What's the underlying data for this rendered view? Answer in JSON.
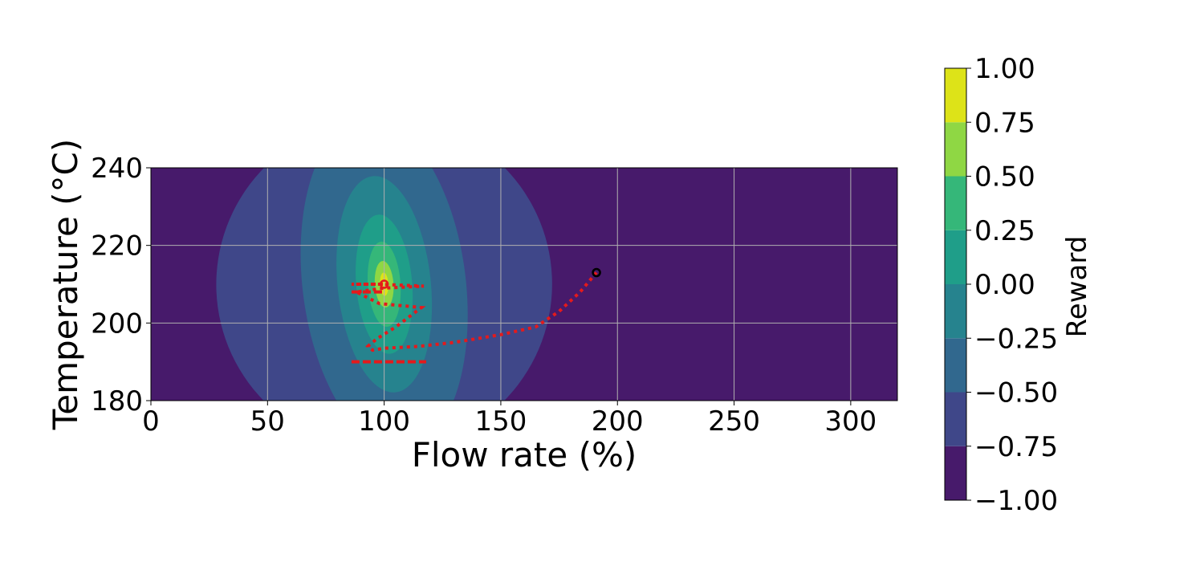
{
  "chart_data": {
    "type": "heatmap",
    "subtype": "filled-contour",
    "xlabel": "Flow rate (%)",
    "ylabel": "Temperature (°C)",
    "xlim": [
      0,
      320
    ],
    "ylim": [
      180,
      240
    ],
    "x_ticks": [
      "0",
      "50",
      "100",
      "150",
      "200",
      "250",
      "300"
    ],
    "y_ticks": [
      "180",
      "200",
      "220",
      "240"
    ],
    "grid": true,
    "colorbar": {
      "label": "Reward",
      "range": [
        -1.0,
        1.0
      ],
      "tick_labels": [
        "1.00",
        "0.75",
        "0.50",
        "0.25",
        "0.00",
        "−0.25",
        "−0.50",
        "−0.75",
        "−1.00"
      ],
      "levels": [
        -1.0,
        -0.75,
        -0.5,
        -0.25,
        0.0,
        0.25,
        0.5,
        0.75,
        1.0
      ],
      "colors": [
        "#471a6b",
        "#3f4789",
        "#31688e",
        "#26838e",
        "#1f9e89",
        "#35b779",
        "#8fd744",
        "#dde318"
      ]
    },
    "reward_peak": {
      "x": 100,
      "y": 210
    },
    "contour_bands": [
      {
        "level": -0.75,
        "color": "#3f4789",
        "rx": 72,
        "ry": 43,
        "tilt": -8
      },
      {
        "level": -0.5,
        "color": "#31688e",
        "rx": 35,
        "ry": 43,
        "tilt": -7
      },
      {
        "level": -0.25,
        "color": "#26838e",
        "rx": 20,
        "ry": 28,
        "tilt": -6
      },
      {
        "level": 0.0,
        "color": "#1f9e89",
        "rx": 12,
        "ry": 18,
        "tilt": -5
      },
      {
        "level": 0.25,
        "color": "#35b779",
        "rx": 7,
        "ry": 11,
        "tilt": -4
      },
      {
        "level": 0.5,
        "color": "#8fd744",
        "rx": 4,
        "ry": 6,
        "tilt": -4
      },
      {
        "level": 0.75,
        "color": "#dde318",
        "rx": 1.8,
        "ry": 3,
        "tilt": -3
      }
    ],
    "series": [
      {
        "style": "dotted",
        "color": "#e41a1c",
        "x": [
          191,
          184,
          175,
          165,
          150,
          130,
          115,
          100,
          95,
          93,
          97,
          105,
          116,
          98,
          88,
          100,
          117,
          98,
          86,
          100
        ],
        "y": [
          213,
          208,
          203,
          199,
          197,
          195,
          194,
          193.5,
          193,
          194,
          196,
          199,
          204,
          205,
          208,
          209,
          209.5,
          210,
          210,
          210
        ]
      },
      {
        "style": "dashed",
        "color": "#e41a1c",
        "x": [
          86,
          118
        ],
        "y": [
          190,
          190
        ]
      },
      {
        "style": "dashed",
        "color": "#e41a1c",
        "x": [
          86,
          100
        ],
        "y": [
          208,
          208
        ]
      }
    ],
    "markers": [
      {
        "x": 191,
        "y": 213,
        "color": "#000000",
        "shape": "circle"
      },
      {
        "x": 100,
        "y": 210,
        "color": "#e41a1c",
        "shape": "circle"
      }
    ]
  }
}
